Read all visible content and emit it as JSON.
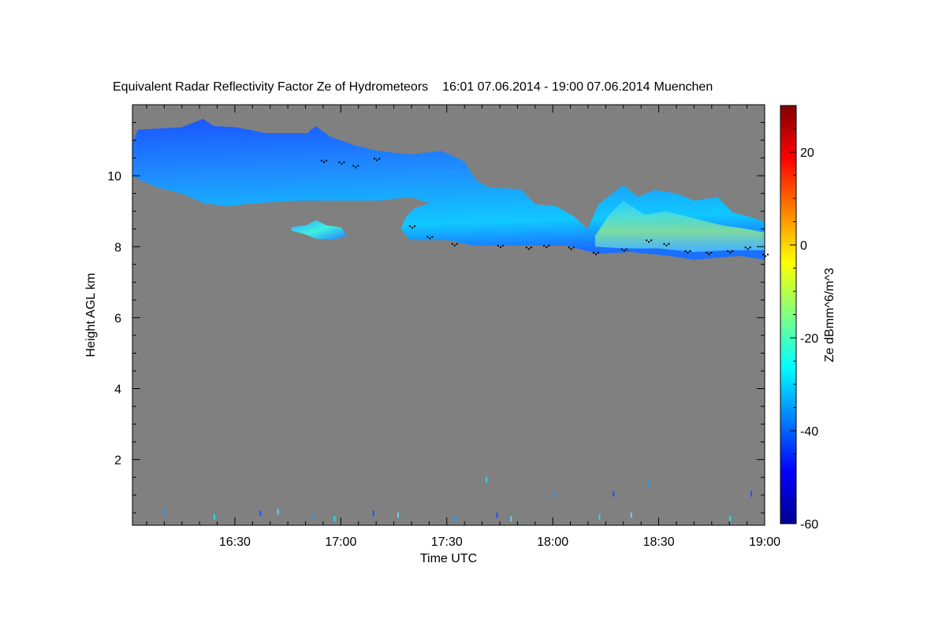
{
  "chart_data": {
    "type": "heatmap",
    "title": "Equivalent Radar Reflectivity Factor Ze of Hydrometeors",
    "time_range": "16:01 07.06.2014 - 19:00 07.06.2014",
    "location": "Muenchen",
    "xlabel": "Time UTC",
    "ylabel": "Height AGL km",
    "colorbar_label": "Ze dBmm^6/m^3",
    "x_unit_note": "minutes after 16:00 UTC",
    "xlim": [
      1,
      180
    ],
    "ylim": [
      0.15,
      12
    ],
    "x_ticks": [
      {
        "value": 30,
        "label": "16:30"
      },
      {
        "value": 60,
        "label": "17:00"
      },
      {
        "value": 90,
        "label": "17:30"
      },
      {
        "value": 120,
        "label": "18:00"
      },
      {
        "value": 150,
        "label": "18:30"
      },
      {
        "value": 180,
        "label": "19:00"
      }
    ],
    "y_ticks": [
      {
        "value": 2,
        "label": "2"
      },
      {
        "value": 4,
        "label": "4"
      },
      {
        "value": 6,
        "label": "6"
      },
      {
        "value": 8,
        "label": "8"
      },
      {
        "value": 10,
        "label": "10"
      }
    ],
    "colorbar_range": [
      -60,
      30
    ],
    "colorbar_ticks": [
      {
        "value": 20,
        "label": "20"
      },
      {
        "value": 0,
        "label": "0"
      },
      {
        "value": -20,
        "label": "-20"
      },
      {
        "value": -40,
        "label": "-40"
      },
      {
        "value": -60,
        "label": "-60"
      }
    ],
    "background_color": "#808080",
    "cloud_regions": [
      {
        "name": "main-cirrus-layer",
        "typical_ze_dbz": -35,
        "outline": [
          [
            1,
            10.96
          ],
          [
            2.6,
            11.3
          ],
          [
            14.8,
            11.36
          ],
          [
            21,
            11.6
          ],
          [
            24,
            11.4
          ],
          [
            30.5,
            11.36
          ],
          [
            39,
            11.2
          ],
          [
            50.5,
            11.2
          ],
          [
            52.8,
            11.4
          ],
          [
            57,
            11.1
          ],
          [
            64,
            10.85
          ],
          [
            70.6,
            10.7
          ],
          [
            79.6,
            10.6
          ],
          [
            88.5,
            10.7
          ],
          [
            95,
            10.4
          ],
          [
            98.5,
            9.85
          ],
          [
            102,
            9.67
          ],
          [
            111,
            9.62
          ],
          [
            115,
            9.2
          ],
          [
            121,
            9.14
          ],
          [
            126,
            8.85
          ],
          [
            129.8,
            8.5
          ],
          [
            133,
            9.2
          ],
          [
            140,
            9.74
          ],
          [
            144,
            9.4
          ],
          [
            148.8,
            9.6
          ],
          [
            155,
            9.5
          ],
          [
            160,
            9.3
          ],
          [
            166.6,
            9.4
          ],
          [
            171,
            8.96
          ],
          [
            175.5,
            8.85
          ],
          [
            180,
            8.7
          ],
          [
            180,
            7.63
          ],
          [
            173,
            7.74
          ],
          [
            160,
            7.63
          ],
          [
            153,
            7.74
          ],
          [
            142,
            7.85
          ],
          [
            133,
            7.8
          ],
          [
            128.7,
            7.9
          ],
          [
            124,
            8.03
          ],
          [
            115,
            8.03
          ],
          [
            104,
            8.03
          ],
          [
            97.4,
            8.03
          ],
          [
            90.7,
            8.18
          ],
          [
            84,
            8.18
          ],
          [
            79.6,
            8.18
          ],
          [
            77,
            8.5
          ],
          [
            78.5,
            8.85
          ],
          [
            80.7,
            9.07
          ],
          [
            85,
            9.23
          ],
          [
            79.6,
            9.4
          ],
          [
            70.6,
            9.3
          ],
          [
            59.5,
            9.3
          ],
          [
            48,
            9.3
          ],
          [
            35,
            9.22
          ],
          [
            28,
            9.14
          ],
          [
            21.5,
            9.22
          ],
          [
            14.8,
            9.5
          ],
          [
            8,
            9.67
          ],
          [
            2.6,
            9.9
          ],
          [
            1,
            10.0
          ]
        ]
      },
      {
        "name": "isolated-cloud",
        "typical_ze_dbz": -30,
        "outline": [
          [
            46,
            8.55
          ],
          [
            50,
            8.6
          ],
          [
            53,
            8.75
          ],
          [
            56,
            8.6
          ],
          [
            60,
            8.55
          ],
          [
            61.7,
            8.3
          ],
          [
            58,
            8.2
          ],
          [
            53,
            8.22
          ],
          [
            50,
            8.35
          ],
          [
            46,
            8.45
          ]
        ]
      },
      {
        "name": "lower-right-enhanced",
        "typical_ze_dbz": -15,
        "outline": [
          [
            132,
            8.3
          ],
          [
            136,
            8.9
          ],
          [
            140,
            9.3
          ],
          [
            146,
            8.9
          ],
          [
            152,
            9.0
          ],
          [
            160,
            8.8
          ],
          [
            168,
            8.6
          ],
          [
            175,
            8.5
          ],
          [
            180,
            8.4
          ],
          [
            180,
            7.9
          ],
          [
            170,
            7.9
          ],
          [
            160,
            7.85
          ],
          [
            150,
            7.95
          ],
          [
            140,
            7.95
          ],
          [
            132,
            8.0
          ]
        ]
      }
    ],
    "cloud_base_markers": [
      [
        55,
        10.45
      ],
      [
        60,
        10.4
      ],
      [
        64,
        10.3
      ],
      [
        70,
        10.5
      ],
      [
        80,
        8.6
      ],
      [
        85,
        8.3
      ],
      [
        92,
        8.1
      ],
      [
        105,
        8.05
      ],
      [
        113,
        8.0
      ],
      [
        118,
        8.05
      ],
      [
        125,
        8.0
      ],
      [
        132,
        7.85
      ],
      [
        140,
        7.95
      ],
      [
        147,
        8.2
      ],
      [
        152,
        8.1
      ],
      [
        158,
        7.9
      ],
      [
        164,
        7.85
      ],
      [
        170,
        7.9
      ],
      [
        175,
        8.0
      ],
      [
        180,
        7.8
      ]
    ],
    "ground_clutter": [
      [
        10,
        0.5
      ],
      [
        24,
        0.35
      ],
      [
        37,
        0.45
      ],
      [
        42,
        0.5
      ],
      [
        52,
        0.35
      ],
      [
        58,
        0.3
      ],
      [
        69,
        0.45
      ],
      [
        76,
        0.4
      ],
      [
        92,
        0.3
      ],
      [
        101,
        1.4
      ],
      [
        104,
        0.4
      ],
      [
        108,
        0.3
      ],
      [
        120,
        1.0
      ],
      [
        133,
        0.35
      ],
      [
        137,
        1.0
      ],
      [
        142,
        0.4
      ],
      [
        147,
        1.3
      ],
      [
        170,
        0.3
      ],
      [
        176,
        1.0
      ]
    ]
  }
}
